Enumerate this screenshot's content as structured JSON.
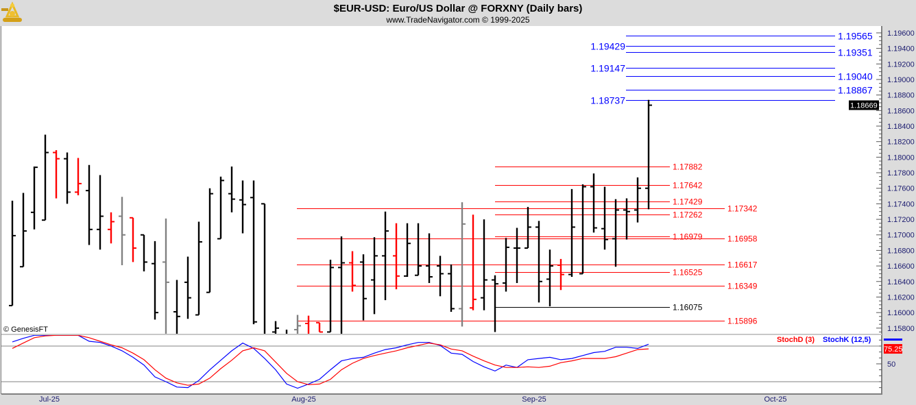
{
  "header": {
    "title": "$EUR-USD:  Euro/US Dollar @ FORXNY  (Daily bars)",
    "subtitle": "www.TradeNavigator.com © 1999-2025",
    "logo_icon": "sextant-icon"
  },
  "copyright": "© GenesisFT",
  "colors": {
    "up": "#000000",
    "down": "#ff0000",
    "neutral": "#808080",
    "stochD": "#ff0000",
    "stochK": "#0000ff",
    "resistance": "#0000ff",
    "support": "#ff0000"
  },
  "chart_data": [
    {
      "type": "ohlc",
      "title": "$EUR-USD:  Euro/US Dollar @ FORXNY  (Daily bars)",
      "ylim": [
        1.157,
        1.197
      ],
      "y_ticks": [
        "1.19600",
        "1.19400",
        "1.19200",
        "1.19000",
        "1.18800",
        "1.18600",
        "1.18400",
        "1.18200",
        "1.18000",
        "1.17800",
        "1.17600",
        "1.17400",
        "1.17200",
        "1.17000",
        "1.16800",
        "1.16600",
        "1.16400",
        "1.16200",
        "1.16000",
        "1.15800"
      ],
      "x_labels": [
        "Jul-25",
        "Aug-25",
        "Sep-25",
        "Oct-25"
      ],
      "last_price": "1.18669",
      "bar_colors": "kkkkrkrkkrgrkkgkkkkkkkkkkkgrrkkrkkkrkkkkkgrkkkkkkkrkkkkkkkk",
      "bars": [
        [
          1.1609,
          1.1744,
          1.1609,
          1.1699
        ],
        [
          1.1659,
          1.1754,
          1.1659,
          1.1705
        ],
        [
          1.1729,
          1.1788,
          1.1707,
          1.1787
        ],
        [
          1.1719,
          1.1829,
          1.1719,
          1.1806
        ],
        [
          1.1806,
          1.1809,
          1.1747,
          1.1798
        ],
        [
          1.1798,
          1.1806,
          1.174,
          1.1755
        ],
        [
          1.1755,
          1.1799,
          1.1751,
          1.1766
        ],
        [
          1.1757,
          1.179,
          1.1687,
          1.1707
        ],
        [
          1.1707,
          1.1777,
          1.1681,
          1.1724
        ],
        [
          1.1707,
          1.1729,
          1.1689,
          1.1717
        ],
        [
          1.1724,
          1.1749,
          1.1661,
          1.17
        ],
        [
          1.1722,
          1.1722,
          1.1665,
          1.1683
        ],
        [
          1.17,
          1.17,
          1.1653,
          1.1665
        ],
        [
          1.1663,
          1.1692,
          1.1591,
          1.16
        ],
        [
          1.1665,
          1.1721,
          1.1566,
          1.1639
        ],
        [
          1.1601,
          1.1642,
          1.1561,
          1.1595
        ],
        [
          1.1639,
          1.1672,
          1.1592,
          1.1619
        ],
        [
          1.1597,
          1.1717,
          1.1597,
          1.1691
        ],
        [
          1.1626,
          1.176,
          1.1626,
          1.1753
        ],
        [
          1.1695,
          1.1775,
          1.1695,
          1.177
        ],
        [
          1.1753,
          1.1788,
          1.1729,
          1.1746
        ],
        [
          1.1745,
          1.177,
          1.1702,
          1.1739
        ],
        [
          1.1748,
          1.177,
          1.1585,
          1.1588
        ],
        [
          1.174,
          1.174,
          1.1555,
          1.1565
        ],
        [
          1.1575,
          1.1589,
          1.1555,
          1.158
        ],
        [
          1.157,
          1.1578,
          1.155,
          1.156
        ],
        [
          1.1578,
          1.1597,
          1.156,
          1.1583
        ],
        [
          1.1586,
          1.1596,
          1.156,
          1.157
        ],
        [
          1.1587,
          1.1587,
          1.1575,
          1.1575
        ],
        [
          1.1575,
          1.1668,
          1.1575,
          1.1658
        ],
        [
          1.1658,
          1.1698,
          1.1565,
          1.1664
        ],
        [
          1.1664,
          1.1679,
          1.1627,
          1.1635
        ],
        [
          1.1665,
          1.1675,
          1.159,
          1.1618
        ],
        [
          1.1642,
          1.1697,
          1.1598,
          1.1673
        ],
        [
          1.1673,
          1.173,
          1.1616,
          1.1705
        ],
        [
          1.1673,
          1.1715,
          1.163,
          1.1647
        ],
        [
          1.1647,
          1.1715,
          1.1646,
          1.1689
        ],
        [
          1.1648,
          1.1715,
          1.1648,
          1.166
        ],
        [
          1.166,
          1.1702,
          1.1638,
          1.1646
        ],
        [
          1.166,
          1.1673,
          1.1621,
          1.165
        ],
        [
          1.165,
          1.1662,
          1.1601,
          1.1605
        ],
        [
          1.1605,
          1.1742,
          1.1582,
          1.1714
        ],
        [
          1.1606,
          1.1726,
          1.1603,
          1.1617
        ],
        [
          1.1619,
          1.172,
          1.1603,
          1.1642
        ],
        [
          1.1642,
          1.1648,
          1.1575,
          1.1637
        ],
        [
          1.1638,
          1.1696,
          1.1627,
          1.1684
        ],
        [
          1.1683,
          1.1709,
          1.1638,
          1.1683
        ],
        [
          1.1683,
          1.1736,
          1.1683,
          1.171
        ],
        [
          1.171,
          1.1718,
          1.1613,
          1.164
        ],
        [
          1.1643,
          1.1681,
          1.1608,
          1.166
        ],
        [
          1.1661,
          1.1669,
          1.1629,
          1.1649
        ],
        [
          1.1649,
          1.1759,
          1.1646,
          1.171
        ],
        [
          1.165,
          1.1765,
          1.165,
          1.1762
        ],
        [
          1.1762,
          1.1779,
          1.1703,
          1.1709
        ],
        [
          1.1708,
          1.1762,
          1.1681,
          1.1694
        ],
        [
          1.1695,
          1.1746,
          1.1659,
          1.1732
        ],
        [
          1.1732,
          1.1747,
          1.1694,
          1.173
        ],
        [
          1.1732,
          1.1774,
          1.1716,
          1.176
        ],
        [
          1.176,
          1.18737,
          1.1733,
          1.18669
        ]
      ],
      "levels": [
        {
          "value": 1.19565,
          "label": "1.19565",
          "color": "#0000ff",
          "group": "projection",
          "label_side": "right"
        },
        {
          "value": 1.19429,
          "label": "1.19429",
          "color": "#0000ff",
          "group": "projection",
          "label_side": "left"
        },
        {
          "value": 1.19351,
          "label": "1.19351",
          "color": "#0000ff",
          "group": "projection",
          "label_side": "right"
        },
        {
          "value": 1.19147,
          "label": "1.19147",
          "color": "#0000ff",
          "group": "projection",
          "label_side": "left"
        },
        {
          "value": 1.1904,
          "label": "1.19040",
          "color": "#0000ff",
          "group": "projection",
          "label_side": "right"
        },
        {
          "value": 1.18867,
          "label": "1.18867",
          "color": "#0000ff",
          "group": "projection",
          "label_side": "right"
        },
        {
          "value": 1.18737,
          "label": "1.18737",
          "color": "#0000ff",
          "group": "projection",
          "label_side": "left"
        },
        {
          "value": 1.17882,
          "label": "1.17882",
          "color": "#ff0000",
          "group": "near",
          "label_side": "right"
        },
        {
          "value": 1.17642,
          "label": "1.17642",
          "color": "#ff0000",
          "group": "near",
          "label_side": "right"
        },
        {
          "value": 1.17429,
          "label": "1.17429",
          "color": "#ff0000",
          "group": "near",
          "label_side": "right"
        },
        {
          "value": 1.17342,
          "label": "1.17342",
          "color": "#ff0000",
          "group": "wide",
          "label_side": "right"
        },
        {
          "value": 1.17262,
          "label": "1.17262",
          "color": "#ff0000",
          "group": "near",
          "label_side": "right"
        },
        {
          "value": 1.16979,
          "label": "1.16979",
          "color": "#ff0000",
          "group": "near",
          "label_side": "right"
        },
        {
          "value": 1.16958,
          "label": "1.16958",
          "color": "#ff0000",
          "group": "wide",
          "label_side": "right"
        },
        {
          "value": 1.16617,
          "label": "1.16617",
          "color": "#ff0000",
          "group": "wide",
          "label_side": "right"
        },
        {
          "value": 1.16525,
          "label": "1.16525",
          "color": "#ff0000",
          "group": "near",
          "label_side": "right"
        },
        {
          "value": 1.16349,
          "label": "1.16349",
          "color": "#ff0000",
          "group": "wide",
          "label_side": "right"
        },
        {
          "value": 1.16075,
          "label": "1.16075",
          "color": "#000000",
          "group": "near",
          "label_side": "right"
        },
        {
          "value": 1.15896,
          "label": "1.15896",
          "color": "#ff0000",
          "group": "wide",
          "label_side": "right"
        }
      ]
    },
    {
      "type": "line",
      "title": "Stochastic",
      "ylim": [
        0,
        100
      ],
      "reference_lines": [
        80,
        20
      ],
      "y_tick_label": "50",
      "last_value_label": "75.25",
      "legend": [
        {
          "name": "StochD (3)",
          "color": "#ff0000"
        },
        {
          "name": "StochK (12,5)",
          "color": "#0000ff"
        }
      ],
      "legend_position": "top-right",
      "series": [
        {
          "name": "StochK (12,5)",
          "color": "#0000ff",
          "values": [
            87,
            93,
            98,
            98,
            98,
            98,
            98,
            88,
            86,
            80,
            72,
            61,
            48,
            28,
            20,
            11,
            10,
            22,
            40,
            56,
            72,
            85,
            76,
            59,
            40,
            16,
            9,
            16,
            24,
            40,
            55,
            59,
            61,
            68,
            74,
            77,
            82,
            86,
            86,
            81,
            68,
            66,
            54,
            45,
            38,
            48,
            44,
            57,
            59,
            61,
            57,
            59,
            64,
            69,
            71,
            78,
            78,
            76,
            83
          ]
        },
        {
          "name": "StochD (3)",
          "color": "#ff0000",
          "values": [
            76,
            85,
            94,
            97,
            98,
            98,
            98,
            94,
            88,
            82,
            77,
            68,
            57,
            40,
            26,
            18,
            14,
            16,
            26,
            42,
            56,
            72,
            77,
            72,
            53,
            34,
            20,
            15,
            16,
            24,
            40,
            51,
            59,
            64,
            68,
            72,
            77,
            81,
            85,
            82,
            75,
            72,
            63,
            55,
            48,
            44,
            44,
            45,
            44,
            46,
            52,
            55,
            59,
            59,
            59,
            62,
            68,
            74,
            75.25
          ]
        }
      ]
    }
  ]
}
